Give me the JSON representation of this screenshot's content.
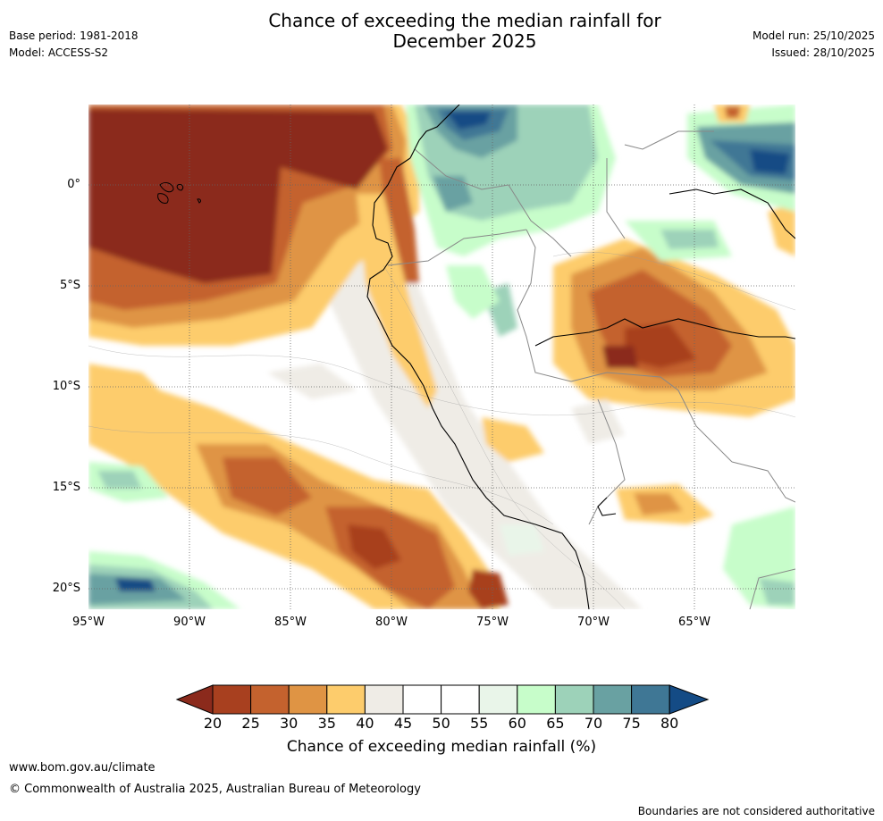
{
  "header": {
    "title_line1": "Chance of exceeding the median rainfall for",
    "title_line2": "December 2025",
    "base_period": "Base period: 1981-2018",
    "model": "Model: ACCESS-S2",
    "model_run": "Model run: 25/10/2025",
    "issued": "Issued: 28/10/2025"
  },
  "axes": {
    "lat_labels": [
      "0°",
      "5°S",
      "10°S",
      "15°S",
      "20°S"
    ],
    "lon_labels": [
      "95°W",
      "90°W",
      "85°W",
      "80°W",
      "75°W",
      "70°W",
      "65°W"
    ]
  },
  "colorbar": {
    "ticks": [
      "20",
      "25",
      "30",
      "35",
      "40",
      "45",
      "50",
      "55",
      "60",
      "65",
      "70",
      "75",
      "80"
    ],
    "colors": [
      "#8b2a1c",
      "#a8401f",
      "#c4622e",
      "#df9444",
      "#fdcc6c",
      "#efece6",
      "#ffffff",
      "#ffffff",
      "#e9f5e9",
      "#c7fdca",
      "#9dd2b9",
      "#69a1a2",
      "#3f7795",
      "#144b85"
    ],
    "label": "Chance of exceeding median rainfall (%)"
  },
  "footer": {
    "website": "www.bom.gov.au/climate",
    "copyright": "© Commonwealth of Australia 2025, Australian Bureau of Meteorology",
    "disclaimer": "Boundaries are not considered authoritative"
  }
}
